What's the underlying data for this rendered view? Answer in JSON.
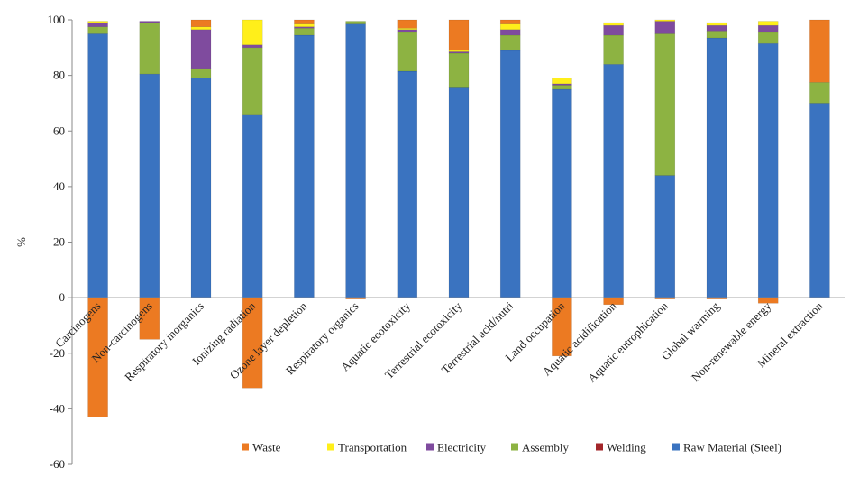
{
  "chart_data": {
    "type": "bar",
    "stacked": true,
    "ylabel": "%",
    "xlabel": "",
    "title": "",
    "ylim": [
      -60,
      100
    ],
    "yticks": [
      -60,
      -40,
      -20,
      0,
      20,
      40,
      60,
      80,
      100
    ],
    "grid": false,
    "legend_position": "bottom",
    "categories": [
      "Carcinogens",
      "Non-carcinogens",
      "Respiratory inorganics",
      "Ionizing radiation",
      "Ozone layer depletion",
      "Respiratory organics",
      "Aquatic ecotoxicity",
      "Terrestrial ecotoxicity",
      "Terrestrial acid/nutri",
      "Land occupation",
      "Aquatic acidification",
      "Aquatic eutrophication",
      "Global warming",
      "Non-renewable energy",
      "Mineral extraction"
    ],
    "series": [
      {
        "name": "Raw Material (Steel)",
        "color": "#3a73c0",
        "values": [
          95,
          80.5,
          79,
          66,
          94.5,
          98.5,
          81.5,
          75.5,
          89,
          75,
          84,
          44,
          93.5,
          91.5,
          70
        ]
      },
      {
        "name": "Welding",
        "color": "#a3262a",
        "values": [
          0,
          0,
          0,
          0,
          0,
          0,
          0,
          0,
          0,
          0,
          0,
          0,
          0,
          0,
          0
        ]
      },
      {
        "name": "Assembly",
        "color": "#8db342",
        "values": [
          2.5,
          18.5,
          3.5,
          24,
          2.5,
          1,
          14,
          12.5,
          5.5,
          1.5,
          10.5,
          51,
          2.5,
          4,
          7.5
        ]
      },
      {
        "name": "Electricity",
        "color": "#7f4b9e",
        "values": [
          1.5,
          0.5,
          14,
          1,
          0.5,
          0,
          1,
          0.5,
          2,
          0.5,
          3.5,
          4.5,
          2,
          2.5,
          0
        ]
      },
      {
        "name": "Transportation",
        "color": "#ffef1a",
        "values": [
          0.5,
          0,
          1,
          9,
          1,
          0,
          0.5,
          0.5,
          2,
          2,
          1,
          0.5,
          1,
          1.5,
          0
        ]
      },
      {
        "name": "Waste",
        "color": "#ec7a22",
        "values": [
          -43,
          -15,
          2.5,
          -32.5,
          1.5,
          -0.5,
          3,
          11,
          1.5,
          -21,
          -2.5,
          -0.5,
          -0.5,
          -2,
          22.5
        ]
      }
    ]
  }
}
